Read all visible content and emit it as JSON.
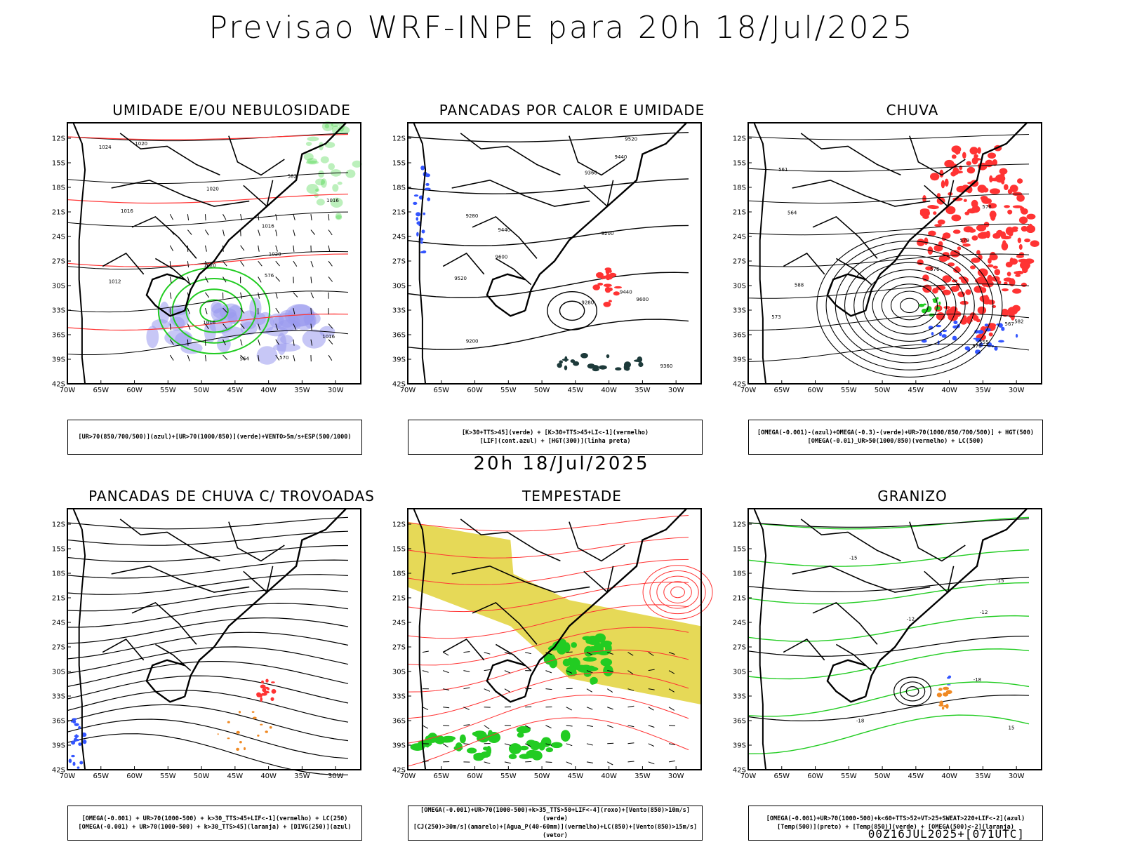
{
  "header": {
    "title": "Previsao WRF-INPE  para 20h 18/Jul/2025",
    "mid_time": "20h 18/Jul/2025",
    "run_info": "00Z16JUL2025+[071UTC]"
  },
  "axes": {
    "lat_ticks": [
      "12S",
      "15S",
      "18S",
      "21S",
      "24S",
      "27S",
      "30S",
      "33S",
      "36S",
      "39S",
      "42S"
    ],
    "lon_ticks": [
      "70W",
      "65W",
      "60W",
      "55W",
      "50W",
      "45W",
      "40W",
      "35W",
      "30W"
    ]
  },
  "colors": {
    "green": "#22cc22",
    "red": "#ff3333",
    "blue": "#3355ff",
    "lavender": "#9999ee",
    "yellow": "#e2d23a",
    "orange": "#f08a24",
    "purple": "#5a2a8a",
    "darkteal": "#1d3a3a"
  },
  "panels": [
    {
      "id": "umidade",
      "title": "UMIDADE E/OU NEBULOSIDADE",
      "legend": [
        "[UR>70(850/700/500)](azul)+[UR>70(1000/850)](verde)+VENTO>5m/s+ESP(500/1000)"
      ],
      "contour_labels": [
        "1016",
        "1016",
        "1020",
        "1020",
        "1016",
        "1020",
        "1024",
        "1012",
        "1016",
        "1020",
        "1016",
        "564",
        "570",
        "576",
        "582"
      ]
    },
    {
      "id": "pancadas-calor",
      "title": "PANCADAS POR CALOR E UMIDADE",
      "legend": [
        "[K>30+TTS>45](verde) + [K>30+TTS>45+LI<-1](vermelho)",
        "[LIF](cont.azul) + [HGT(300)](linha preta)"
      ],
      "contour_labels": [
        "9600",
        "9600",
        "9520",
        "9520",
        "9440",
        "9440",
        "9440",
        "9360",
        "9360",
        "9280",
        "9200",
        "9280",
        "9200"
      ]
    },
    {
      "id": "chuva",
      "title": "CHUVA",
      "legend": [
        "[OMEGA(-0.001)-(azul)+OMEGA(-0.3)-(verde)+UR>70(1000/850/700/500)] + HGT(500)",
        "[OMEGA(-0.01)_UR>50(1000/850)(vermelho) + LC(500)"
      ],
      "contour_labels": [
        "582",
        "588",
        "576",
        "570",
        "573",
        "579",
        "567",
        "561",
        "555",
        "564",
        "576"
      ]
    },
    {
      "id": "trovoadas",
      "title": "PANCADAS DE CHUVA C/ TROVOADAS",
      "legend": [
        "[OMEGA(-0.001) + UR>70(1000-500) + k>30_TTS>45+LIF<-1](vermelho) + LC(250)",
        "[OMEGA(-0.001) + UR>70(1000-500) + k>30_TTS>45](laranja) + [DIVG(250)](azul)"
      ],
      "contour_labels": []
    },
    {
      "id": "tempestade",
      "title": "TEMPESTADE",
      "legend": [
        "[OMEGA(-0.001)+UR>70(1000-500)+k>35_TTS>50+LIF<-4](roxo)+[Vento(850)>10m/s](verde)",
        "[CJ(250)>30m/s](amarelo)+[Agua_P(40-60mm)](vermelho)+LC(850)+[Vento(850)>15m/s](vetor)"
      ],
      "contour_labels": []
    },
    {
      "id": "granizo",
      "title": "GRANIZO",
      "legend": [
        "[OMEGA(-0.001)+UR>70(1000-500)+k<60+TTS>52+VT>25+SWEAT>220+LIF<-2](azul)",
        "[Temp(500)](preto) + [Temp(850)](verde) + [OMEGA(500)<-2](laranja)"
      ],
      "contour_labels": [
        "-15",
        "-12",
        "-18",
        "-18",
        "-15",
        "-12",
        "15"
      ]
    }
  ],
  "chart_data": [
    {
      "type": "map",
      "panel": "umidade",
      "title": "UMIDADE E/OU NEBULOSIDADE",
      "lat_range": [
        "12S",
        "42S"
      ],
      "lon_range": [
        "70W",
        "30W"
      ],
      "series": [
        {
          "name": "UR>70(850/700/500)"
        },
        {
          "name": "UR>70(1000/850)"
        }
      ]
    },
    {
      "type": "map",
      "panel": "pancadas-calor",
      "title": "PANCADAS POR CALOR E UMIDADE",
      "lat_range": [
        "12S",
        "42S"
      ],
      "lon_range": [
        "70W",
        "30W"
      ]
    },
    {
      "type": "map",
      "panel": "chuva",
      "title": "CHUVA",
      "lat_range": [
        "12S",
        "42S"
      ],
      "lon_range": [
        "70W",
        "30W"
      ]
    },
    {
      "type": "map",
      "panel": "trovoadas",
      "title": "PANCADAS DE CHUVA C/ TROVOADAS",
      "lat_range": [
        "12S",
        "42S"
      ],
      "lon_range": [
        "70W",
        "30W"
      ]
    },
    {
      "type": "map",
      "panel": "tempestade",
      "title": "TEMPESTADE",
      "lat_range": [
        "12S",
        "42S"
      ],
      "lon_range": [
        "70W",
        "30W"
      ]
    },
    {
      "type": "map",
      "panel": "granizo",
      "title": "GRANIZO",
      "lat_range": [
        "12S",
        "42S"
      ],
      "lon_range": [
        "70W",
        "30W"
      ]
    }
  ]
}
